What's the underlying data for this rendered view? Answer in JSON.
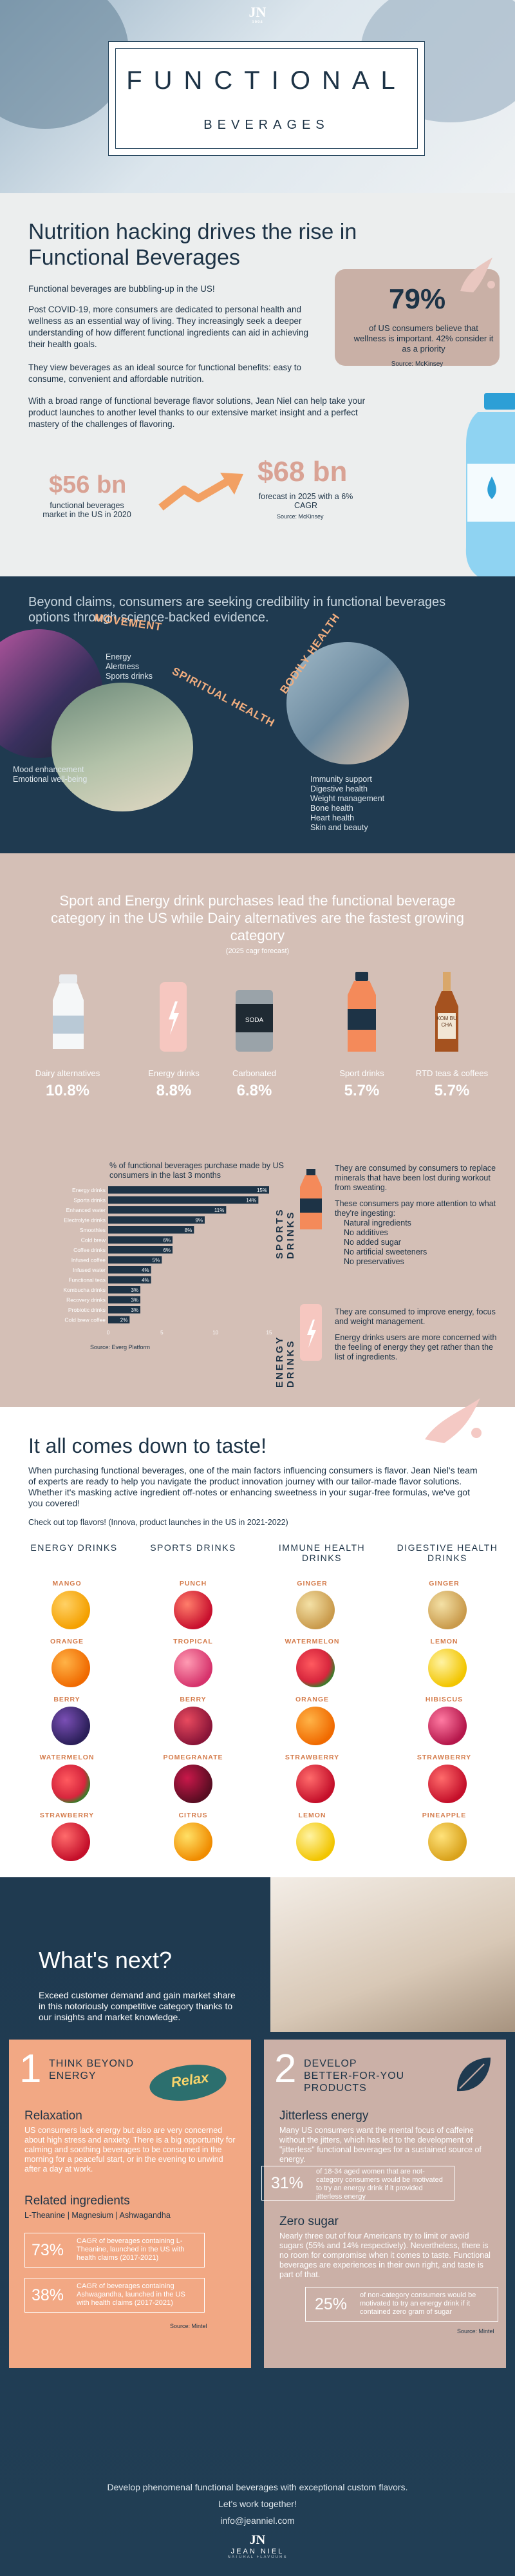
{
  "brand": {
    "logo_mark": "JN",
    "logo_sub": "1994",
    "footer_logo": "JEAN NIEL",
    "footer_logo_sub": "NATURAL FLAVOURS"
  },
  "hero": {
    "title": "FUNCTIONAL",
    "subtitle": "BEVERAGES"
  },
  "intro": {
    "heading": "Nutrition hacking drives the rise in Functional Beverages",
    "p1": "Functional beverages are bubbling-up in the US!",
    "p2": "Post COVID-19, more consumers are dedicated to personal health and wellness as an essential way of living. They increasingly seek a deeper understanding of how different functional ingredients can aid in achieving their health goals.",
    "p3": "They view beverages as an ideal source for functional benefits: easy to consume, convenient and affordable nutrition.",
    "p4": "With a broad range of functional beverage flavor solutions, Jean Niel can help take your product launches to another level thanks to our extensive market insight and a perfect mastery of the challenges of flavoring.",
    "stat_pct": "79%",
    "stat_text": "of US consumers believe that wellness is important. 42% consider it as a priority",
    "stat_source": "Source: McKinsey",
    "market_2020_value": "$56 bn",
    "market_2020_label": "functional beverages market in the US in 2020",
    "market_2025_value": "$68 bn",
    "market_2025_label": "forecast in 2025 with a 6% CAGR",
    "market_source": "Source: McKinsey"
  },
  "claims": {
    "heading": "Beyond claims, consumers are seeking credibility in functional beverages options through science-backed evidence.",
    "movement_title": "MOVEMENT",
    "movement_items": [
      "Energy",
      "Alertness",
      "Sports drinks"
    ],
    "spiritual_title": "SPIRITUAL HEALTH",
    "spiritual_items": [
      "Mood enhancement",
      "Emotional well-being"
    ],
    "bodily_title": "BODILY HEALTH",
    "bodily_items": [
      "Immunity support",
      "Digestive health",
      "Weight management",
      "Bone health",
      "Heart health",
      "Skin and beauty"
    ]
  },
  "sport": {
    "heading": "Sport and Energy drink purchases lead the functional beverage category in the US while Dairy alternatives are the fastest growing category",
    "subheading": "(2025 cagr forecast)",
    "products": [
      {
        "label": "Dairy alternatives",
        "value": "10.8%"
      },
      {
        "label": "Energy drinks",
        "value": "8.8%"
      },
      {
        "label": "Carbonated",
        "value": "6.8%"
      },
      {
        "label": "Sport drinks",
        "value": "5.7%"
      },
      {
        "label": "RTD teas & coffees",
        "value": "5.7%"
      }
    ],
    "kombucha_label": "KOM BU CHA",
    "chart_title": "% of functional beverages purchase made by US consumers in the last 3 months",
    "chart_source": "Source: Everg Platform",
    "sports_title": "SPORTS DRINKS",
    "sports_p1": "They are consumed by consumers to replace minerals that have been lost during workout from sweating.",
    "sports_p2": "These consumers pay more attention to what they're ingesting:",
    "sports_list": [
      "Natural ingredients",
      "No additives",
      "No added sugar",
      "No artificial sweeteners",
      "No preservatives"
    ],
    "energy_title": "ENERGY DRINKS",
    "energy_p1": "They are consumed to improve energy, focus and weight management.",
    "energy_p2": "Energy drinks users are more concerned with the feeling of energy they get rather than the list of ingredients."
  },
  "chart_data": {
    "type": "bar",
    "orientation": "horizontal",
    "title": "% of functional beverages purchase made by US consumers in the last 3 months",
    "categories": [
      "Energy drinks",
      "Sports drinks",
      "Enhanced water",
      "Electrolyte drinks",
      "Smoothies",
      "Cold brew",
      "Coffee drinks",
      "Infused coffee",
      "Infused water",
      "Functional teas",
      "Kombucha drinks",
      "Recovery drinks",
      "Probiotic drinks",
      "Cold brew coffee"
    ],
    "values": [
      15,
      14,
      11,
      9,
      8,
      6,
      6,
      5,
      4,
      4,
      3,
      3,
      3,
      2
    ],
    "xlim": [
      0,
      15
    ],
    "xticks": [
      "0",
      "5",
      "10",
      "15"
    ],
    "value_labels": [
      "15%",
      "14%",
      "11%",
      "9%",
      "8%",
      "6%",
      "6%",
      "5%",
      "4%",
      "4%",
      "3%",
      "3%",
      "3%",
      "2%"
    ],
    "colors": {
      "bar": "#1d3346",
      "label": "#ffffff"
    }
  },
  "taste": {
    "heading": "It all comes down to taste!",
    "p1": "When purchasing functional beverages, one of the main factors influencing consumers is flavor. Jean Niel's team of experts are ready to help you navigate the product innovation journey with our tailor-made flavor solutions. Whether it's masking active ingredient off-notes or enhancing sweetness in your sugar-free formulas, we've got you covered!",
    "p2": "Check out top flavors! (Innova, product launches in the US in 2021-2022)",
    "columns": [
      {
        "title": "ENERGY DRINKS",
        "flavors": [
          "MANGO",
          "ORANGE",
          "BERRY",
          "WATERMELON",
          "STRAWBERRY"
        ]
      },
      {
        "title": "SPORTS DRINKS",
        "flavors": [
          "PUNCH",
          "TROPICAL",
          "BERRY",
          "POMEGRANATE",
          "CITRUS"
        ]
      },
      {
        "title": "IMMUNE HEALTH DRINKS",
        "flavors": [
          "GINGER",
          "WATERMELON",
          "ORANGE",
          "STRAWBERRY",
          "LEMON"
        ]
      },
      {
        "title": "DIGESTIVE HEALTH DRINKS",
        "flavors": [
          "GINGER",
          "LEMON",
          "HIBISCUS",
          "STRAWBERRY",
          "PINEAPPLE"
        ]
      }
    ]
  },
  "next": {
    "heading": "What's next?",
    "intro": "Exceed customer demand and gain market share in this notoriously competitive category thanks to our insights and market knowledge.",
    "card1": {
      "number": "1",
      "title": "THINK BEYOND ENERGY",
      "badge": "Relax",
      "sub1": "Relaxation",
      "text1": "US consumers lack energy but also are very concerned about high stress and anxiety. There is a big opportunity for calming and soothing beverages to be consumed in the morning for a peaceful start, or in the evening to unwind after a day at work.",
      "sub2": "Related ingredients",
      "ingredients": "L-Theanine | Magnesium | Ashwagandha",
      "stat1_pct": "73%",
      "stat1_text": "CAGR of beverages containing L-Theanine, launched in the US with health claims (2017-2021)",
      "stat2_pct": "38%",
      "stat2_text": "CAGR of beverages containing Ashwagandha, launched in the US with health claims (2017-2021)",
      "source": "Source: Mintel"
    },
    "card2": {
      "number": "2",
      "title": "DEVELOP BETTER-FOR-YOU PRODUCTS",
      "sub1": "Jitterless energy",
      "text1": "Many US consumers want the mental focus of caffeine without the jitters, which has led to the development of \"jitterless\" functional beverages for a sustained source of energy.",
      "stat1_pct": "31%",
      "stat1_text": "of 18-34 aged women that are not-category consumers would be motivated to try an energy drink if it provided jitterless energy",
      "sub2": "Zero sugar",
      "text2": "Nearly three out of four Americans try to limit or avoid sugars (55% and 14% respectively). Nevertheless, there is no room for compromise when it comes to taste. Functional beverages are experiences in their own right, and taste is part of that.",
      "stat2_pct": "25%",
      "stat2_text": "of non-category consumers would be motivated to try an energy drink if it contained zero gram of sugar",
      "source": "Source: Mintel"
    },
    "footer_line1": "Develop phenomenal functional beverages with exceptional custom flavors.",
    "footer_line2": "Let's work together!",
    "footer_email": "info@jeanniel.com"
  }
}
